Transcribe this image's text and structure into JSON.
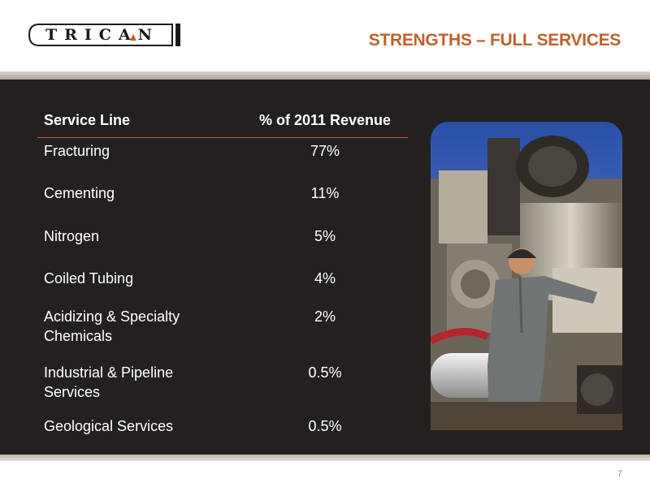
{
  "header": {
    "logo_text": "TRICAN",
    "title": "STRENGTHS – FULL SERVICES"
  },
  "table": {
    "headers": {
      "service": "Service Line",
      "revenue": "% of 2011 Revenue"
    },
    "rows": [
      {
        "service": "Fracturing",
        "revenue": "77%"
      },
      {
        "service": "Cementing",
        "revenue": "11%"
      },
      {
        "service": "Nitrogen",
        "revenue": "5%"
      },
      {
        "service": "Coiled Tubing",
        "revenue": "4%"
      },
      {
        "service": "Acidizing & Specialty Chemicals",
        "revenue": "2%"
      },
      {
        "service": "Industrial & Pipeline Services",
        "revenue": "0.5%"
      },
      {
        "service": "Geological Services",
        "revenue": "0.5%"
      }
    ]
  },
  "colors": {
    "accent": "#c0612b",
    "panel": "#252020",
    "text": "#ffffff"
  },
  "footer": {
    "page_number": "7"
  }
}
